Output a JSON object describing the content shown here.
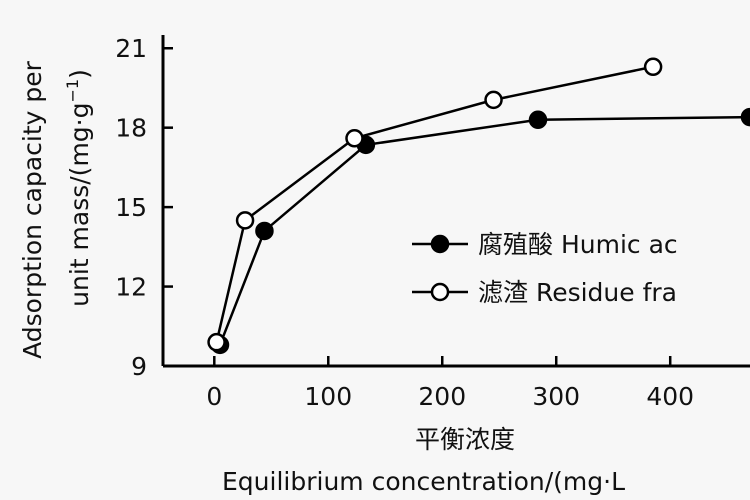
{
  "chart_data": {
    "type": "line",
    "xlabel": "平衡浓度",
    "xlabel_en": "Equilibrium concentration/(mg·L",
    "ylabel_line1": "Adsorption capacity per",
    "ylabel_line2": "unit mass/(mg·g",
    "ylabel_line2_sup": "−1",
    "ylabel_line2_close": ")",
    "xlim": [
      -45,
      470
    ],
    "ylim": [
      9,
      21.5
    ],
    "xticks": [
      0,
      100,
      200,
      300,
      400
    ],
    "yticks": [
      9,
      12,
      15,
      18,
      21
    ],
    "series": [
      {
        "name": "腐殖酸 Humic ac",
        "marker": "filled",
        "x": [
          5,
          44,
          133,
          284,
          470
        ],
        "y": [
          9.8,
          14.1,
          17.35,
          18.3,
          18.4
        ]
      },
      {
        "name": "滤渣 Residue fra",
        "marker": "open",
        "x": [
          2,
          27,
          123,
          245,
          385
        ],
        "y": [
          9.9,
          14.5,
          17.6,
          19.05,
          20.3
        ]
      }
    ]
  }
}
